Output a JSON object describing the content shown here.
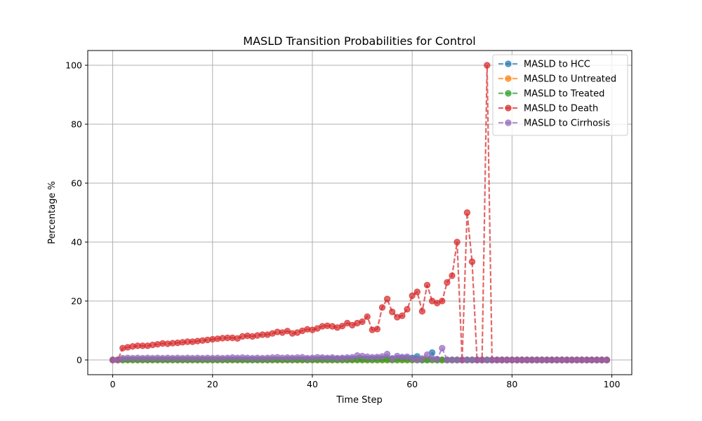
{
  "chart_data": {
    "type": "line",
    "title": "MASLD Transition Probabilities for Control",
    "xlabel": "Time Step",
    "ylabel": "Percentage %",
    "xlim": [
      -5,
      104
    ],
    "ylim": [
      -5,
      105
    ],
    "xticks": [
      0,
      20,
      40,
      60,
      80,
      100
    ],
    "yticks": [
      0,
      20,
      40,
      60,
      80,
      100
    ],
    "grid": true,
    "legend_position": "top-right",
    "series": [
      {
        "name": "MASLD to HCC",
        "color": "#1f77b4",
        "x": [
          0,
          1,
          2,
          3,
          4,
          5,
          6,
          7,
          8,
          9,
          10,
          11,
          12,
          13,
          14,
          15,
          16,
          17,
          18,
          19,
          20,
          21,
          22,
          23,
          24,
          25,
          26,
          27,
          28,
          29,
          30,
          31,
          32,
          33,
          34,
          35,
          36,
          37,
          38,
          39,
          40,
          41,
          42,
          43,
          44,
          45,
          46,
          47,
          48,
          49,
          50,
          51,
          52,
          53,
          54,
          55,
          56,
          57,
          58,
          59,
          60,
          61,
          62,
          63,
          64,
          65,
          66,
          67,
          68,
          69,
          70,
          71,
          72,
          73,
          74,
          75,
          76,
          77,
          78,
          79,
          80,
          81,
          82,
          83,
          84,
          85,
          86,
          87,
          88,
          89,
          90,
          91,
          92,
          93,
          94,
          95,
          96,
          97,
          98,
          99
        ],
        "y": [
          0,
          0,
          0.1,
          0.1,
          0.1,
          0.1,
          0.1,
          0.1,
          0.1,
          0.1,
          0.1,
          0.1,
          0.1,
          0.1,
          0.1,
          0.1,
          0.1,
          0.1,
          0.1,
          0.1,
          0.1,
          0.1,
          0.1,
          0.1,
          0.1,
          0.1,
          0.1,
          0.1,
          0.1,
          0.1,
          0.1,
          0.1,
          0.1,
          0.1,
          0.1,
          0.2,
          0.2,
          0.2,
          0.2,
          0.2,
          0.2,
          0.2,
          0.3,
          0.3,
          0.3,
          0.3,
          0.3,
          0.3,
          0.3,
          0.4,
          0.4,
          0.4,
          0.4,
          0.5,
          0.5,
          0.5,
          0.5,
          0.6,
          0.6,
          0.6,
          0.7,
          1.2,
          0,
          0,
          2.5,
          0,
          0,
          0,
          0,
          0,
          0,
          0,
          0,
          0,
          0,
          0,
          0,
          0,
          0,
          0,
          0,
          0,
          0,
          0,
          0,
          0,
          0,
          0,
          0,
          0,
          0,
          0,
          0,
          0,
          0,
          0,
          0,
          0,
          0,
          0
        ]
      },
      {
        "name": "MASLD to Untreated",
        "color": "#ff7f0e",
        "x": [
          0,
          1,
          2,
          3,
          4,
          5,
          6,
          7,
          8,
          9,
          10,
          11,
          12,
          13,
          14,
          15,
          16,
          17,
          18,
          19,
          20,
          21,
          22,
          23,
          24,
          25,
          26,
          27,
          28,
          29,
          30,
          31,
          32,
          33,
          34,
          35,
          36,
          37,
          38,
          39,
          40,
          41,
          42,
          43,
          44,
          45,
          46,
          47,
          48,
          49,
          50,
          51,
          52,
          53,
          54,
          55,
          56,
          57,
          58,
          59,
          60,
          61,
          62,
          63,
          64,
          65,
          66,
          67,
          68,
          69,
          70,
          71,
          72,
          73,
          74,
          75,
          76,
          77,
          78,
          79,
          80,
          81,
          82,
          83,
          84,
          85,
          86,
          87,
          88,
          89,
          90,
          91,
          92,
          93,
          94,
          95,
          96,
          97,
          98,
          99
        ],
        "y": [
          0,
          0,
          0,
          0,
          0,
          0,
          0,
          0,
          0,
          0,
          0,
          0,
          0,
          0,
          0,
          0,
          0,
          0,
          0,
          0,
          0,
          0,
          0,
          0,
          0,
          0,
          0,
          0,
          0,
          0,
          0,
          0,
          0,
          0,
          0,
          0,
          0,
          0,
          0,
          0,
          0,
          0,
          0,
          0,
          0,
          0,
          0,
          0,
          0,
          0,
          0,
          0,
          0,
          0,
          0,
          0,
          0,
          0,
          0,
          0,
          0,
          0,
          0,
          0,
          0,
          0,
          0,
          0,
          0,
          0,
          0,
          0,
          0,
          0,
          0,
          0,
          0,
          0,
          0,
          0,
          0,
          0,
          0,
          0,
          0,
          0,
          0,
          0,
          0,
          0,
          0,
          0,
          0,
          0,
          0,
          0,
          0,
          0,
          0,
          0
        ]
      },
      {
        "name": "MASLD to Treated",
        "color": "#2ca02c",
        "x": [
          0,
          1,
          2,
          3,
          4,
          5,
          6,
          7,
          8,
          9,
          10,
          11,
          12,
          13,
          14,
          15,
          16,
          17,
          18,
          19,
          20,
          21,
          22,
          23,
          24,
          25,
          26,
          27,
          28,
          29,
          30,
          31,
          32,
          33,
          34,
          35,
          36,
          37,
          38,
          39,
          40,
          41,
          42,
          43,
          44,
          45,
          46,
          47,
          48,
          49,
          50,
          51,
          52,
          53,
          54,
          55,
          56,
          57,
          58,
          59,
          60,
          61,
          62,
          63,
          64,
          65,
          66,
          67,
          68,
          69,
          70,
          71,
          72,
          73,
          74,
          75,
          76,
          77,
          78,
          79,
          80,
          81,
          82,
          83,
          84,
          85,
          86,
          87,
          88,
          89,
          90,
          91,
          92,
          93,
          94,
          95,
          96,
          97,
          98,
          99
        ],
        "y": [
          0,
          0,
          0,
          0,
          0,
          0,
          0,
          0,
          0,
          0,
          0,
          0,
          0,
          0,
          0,
          0,
          0,
          0,
          0,
          0,
          0,
          0,
          0,
          0,
          0,
          0,
          0,
          0,
          0,
          0,
          0,
          0,
          0,
          0,
          0,
          0,
          0,
          0,
          0,
          0,
          0,
          0,
          0,
          0,
          0,
          0,
          0,
          0,
          0,
          0,
          0,
          0,
          0,
          0,
          0,
          0,
          0,
          0,
          0,
          0,
          0,
          0,
          0,
          0,
          0,
          0,
          0,
          0,
          0,
          0,
          0,
          0,
          0,
          0,
          0,
          0,
          0,
          0,
          0,
          0,
          0,
          0,
          0,
          0,
          0,
          0,
          0,
          0,
          0,
          0,
          0,
          0,
          0,
          0,
          0,
          0,
          0,
          0,
          0,
          0
        ]
      },
      {
        "name": "MASLD to Death",
        "color": "#d62728",
        "x": [
          0,
          1,
          2,
          3,
          4,
          5,
          6,
          7,
          8,
          9,
          10,
          11,
          12,
          13,
          14,
          15,
          16,
          17,
          18,
          19,
          20,
          21,
          22,
          23,
          24,
          25,
          26,
          27,
          28,
          29,
          30,
          31,
          32,
          33,
          34,
          35,
          36,
          37,
          38,
          39,
          40,
          41,
          42,
          43,
          44,
          45,
          46,
          47,
          48,
          49,
          50,
          51,
          52,
          53,
          54,
          55,
          56,
          57,
          58,
          59,
          60,
          61,
          62,
          63,
          64,
          65,
          66,
          67,
          68,
          69,
          70,
          71,
          72,
          73,
          74,
          75,
          76,
          77,
          78,
          79,
          80,
          81,
          82,
          83,
          84,
          85,
          86,
          87,
          88,
          89,
          90,
          91,
          92,
          93,
          94,
          95,
          96,
          97,
          98,
          99
        ],
        "y": [
          0,
          0,
          4.0,
          4.3,
          4.6,
          4.8,
          4.8,
          4.8,
          5.1,
          5.3,
          5.6,
          5.5,
          5.7,
          5.8,
          6.0,
          6.2,
          6.2,
          6.4,
          6.6,
          6.8,
          7.0,
          7.2,
          7.4,
          7.5,
          7.5,
          7.3,
          8.0,
          8.2,
          8.0,
          8.3,
          8.6,
          8.6,
          9.0,
          9.5,
          9.3,
          9.8,
          9.0,
          9.3,
          9.9,
          10.4,
          10.2,
          10.7,
          11.4,
          11.6,
          11.4,
          11.0,
          11.5,
          12.5,
          11.8,
          12.5,
          13.0,
          14.7,
          10.2,
          10.5,
          17.8,
          20.7,
          16.3,
          14.5,
          15.0,
          17.2,
          21.8,
          23.1,
          16.5,
          25.4,
          20.0,
          19.3,
          20.0,
          26.3,
          28.6,
          40.0,
          0,
          50.0,
          33.3,
          0,
          0,
          100.0,
          0,
          0,
          0,
          0,
          0,
          0,
          0,
          0,
          0,
          0,
          0,
          0,
          0,
          0,
          0,
          0,
          0,
          0,
          0,
          0,
          0,
          0,
          0,
          0
        ]
      },
      {
        "name": "MASLD to Cirrhosis",
        "color": "#9467bd",
        "x": [
          0,
          1,
          2,
          3,
          4,
          5,
          6,
          7,
          8,
          9,
          10,
          11,
          12,
          13,
          14,
          15,
          16,
          17,
          18,
          19,
          20,
          21,
          22,
          23,
          24,
          25,
          26,
          27,
          28,
          29,
          30,
          31,
          32,
          33,
          34,
          35,
          36,
          37,
          38,
          39,
          40,
          41,
          42,
          43,
          44,
          45,
          46,
          47,
          48,
          49,
          50,
          51,
          52,
          53,
          54,
          55,
          56,
          57,
          58,
          59,
          60,
          61,
          62,
          63,
          64,
          65,
          66,
          67,
          68,
          69,
          70,
          71,
          72,
          73,
          74,
          75,
          76,
          77,
          78,
          79,
          80,
          81,
          82,
          83,
          84,
          85,
          86,
          87,
          88,
          89,
          90,
          91,
          92,
          93,
          94,
          95,
          96,
          97,
          98,
          99
        ],
        "y": [
          0,
          0,
          0.6,
          0.7,
          0.6,
          0.7,
          0.6,
          0.7,
          0.6,
          0.7,
          0.6,
          0.7,
          0.6,
          0.7,
          0.6,
          0.7,
          0.6,
          0.7,
          0.6,
          0.7,
          0.6,
          0.7,
          0.6,
          0.7,
          0.8,
          0.7,
          0.8,
          0.7,
          0.6,
          0.7,
          0.6,
          0.7,
          0.8,
          0.9,
          0.7,
          0.8,
          0.7,
          0.8,
          0.9,
          0.6,
          0.7,
          0.9,
          0.8,
          0.7,
          0.8,
          0.6,
          0.7,
          0.8,
          0.9,
          1.5,
          1.3,
          1.1,
          0.9,
          1.0,
          1.2,
          2.0,
          0.5,
          1.3,
          1.0,
          1.1,
          0.5,
          0,
          0.5,
          1.8,
          0.6,
          0.3,
          4.0,
          0,
          0,
          0,
          0,
          0,
          0,
          0,
          0,
          0,
          0,
          0,
          0,
          0,
          0,
          0,
          0,
          0,
          0,
          0,
          0,
          0,
          0,
          0,
          0,
          0,
          0,
          0,
          0,
          0,
          0,
          0,
          0,
          0
        ]
      }
    ]
  }
}
